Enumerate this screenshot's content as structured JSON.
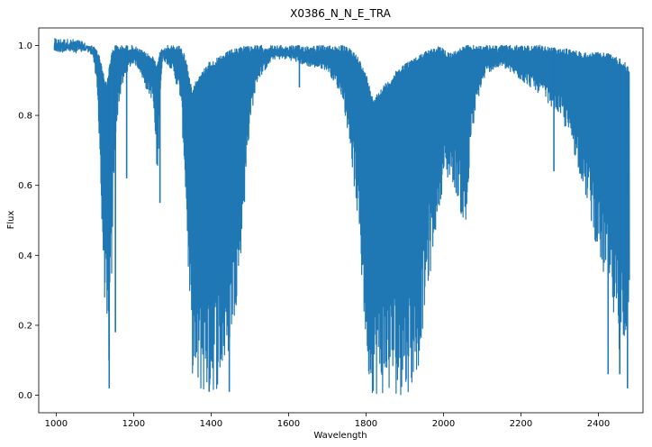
{
  "chart_data": {
    "type": "line",
    "title": "X0386_N_N_E_TRA",
    "xlabel": "Wavelength",
    "ylabel": "Flux",
    "xlim": [
      955,
      2515
    ],
    "ylim": [
      -0.05,
      1.05
    ],
    "xticks": [
      1000,
      1200,
      1400,
      1600,
      1800,
      2000,
      2200,
      2400
    ],
    "yticks": [
      0.0,
      0.2,
      0.4,
      0.6,
      0.8,
      1.0
    ],
    "xtick_labels": [
      "1000",
      "1200",
      "1400",
      "1600",
      "1800",
      "2000",
      "2200",
      "2400"
    ],
    "ytick_labels": [
      "0.0",
      "0.2",
      "0.4",
      "0.6",
      "0.8",
      "1.0"
    ],
    "grid": false,
    "series": [
      {
        "color": "#1f77b4",
        "envelope": {
          "x": [
            995,
            1040,
            1060,
            1080,
            1095,
            1105,
            1112,
            1118,
            1125,
            1130,
            1135,
            1140,
            1145,
            1150,
            1160,
            1170,
            1185,
            1200,
            1215,
            1230,
            1250,
            1262,
            1268,
            1275,
            1300,
            1320,
            1330,
            1338,
            1345,
            1352,
            1360,
            1375,
            1390,
            1410,
            1425,
            1440,
            1455,
            1470,
            1480,
            1490,
            1500,
            1520,
            1560,
            1600,
            1650,
            1700,
            1740,
            1760,
            1780,
            1790,
            1800,
            1810,
            1820,
            1840,
            1860,
            1880,
            1900,
            1920,
            1935,
            1945,
            1960,
            1975,
            1985,
            2000,
            2020,
            2040,
            2055,
            2062,
            2070,
            2090,
            2110,
            2150,
            2200,
            2250,
            2300,
            2330,
            2360,
            2380,
            2400,
            2420,
            2440,
            2460,
            2470,
            2480
          ],
          "high": [
            1.0,
            1.0,
            0.998,
            1.0,
            1.0,
            0.99,
            0.97,
            0.95,
            0.9,
            0.9,
            0.92,
            0.96,
            0.99,
            1.0,
            1.0,
            1.0,
            1.0,
            1.0,
            0.99,
            0.98,
            0.97,
            0.95,
            0.98,
            1.0,
            1.0,
            1.0,
            0.98,
            0.95,
            0.9,
            0.88,
            0.9,
            0.92,
            0.95,
            0.96,
            0.97,
            0.98,
            0.99,
            0.99,
            1.0,
            1.0,
            1.0,
            1.0,
            1.0,
            1.0,
            1.0,
            1.0,
            1.0,
            0.99,
            0.97,
            0.94,
            0.92,
            0.88,
            0.85,
            0.88,
            0.9,
            0.93,
            0.95,
            0.96,
            0.97,
            0.98,
            0.99,
            0.99,
            1.0,
            0.99,
            0.98,
            0.99,
            1.0,
            1.0,
            1.0,
            1.0,
            1.0,
            1.0,
            1.0,
            1.0,
            0.99,
            0.99,
            0.98,
            0.98,
            0.98,
            0.98,
            0.97,
            0.96,
            0.95,
            0.93
          ],
          "low": [
            1.0,
            0.998,
            0.995,
            0.985,
            0.97,
            0.88,
            0.72,
            0.45,
            0.28,
            0.12,
            0.05,
            0.18,
            0.4,
            0.65,
            0.82,
            0.88,
            0.93,
            0.95,
            0.93,
            0.88,
            0.84,
            0.6,
            0.85,
            0.96,
            0.93,
            0.85,
            0.68,
            0.45,
            0.22,
            0.06,
            0.0,
            0.0,
            0.0,
            0.01,
            0.03,
            0.08,
            0.18,
            0.3,
            0.45,
            0.6,
            0.78,
            0.9,
            0.96,
            0.96,
            0.94,
            0.93,
            0.85,
            0.7,
            0.48,
            0.3,
            0.12,
            0.02,
            0.0,
            0.0,
            0.0,
            0.0,
            0.0,
            0.02,
            0.08,
            0.18,
            0.3,
            0.42,
            0.52,
            0.6,
            0.62,
            0.55,
            0.45,
            0.5,
            0.72,
            0.85,
            0.92,
            0.94,
            0.9,
            0.86,
            0.8,
            0.72,
            0.6,
            0.5,
            0.4,
            0.3,
            0.2,
            0.1,
            0.05,
            0.3
          ]
        },
        "deep_lines": [
          {
            "x": 1137,
            "y": 0.02
          },
          {
            "x": 1153,
            "y": 0.18
          },
          {
            "x": 1182,
            "y": 0.62
          },
          {
            "x": 1268,
            "y": 0.55
          },
          {
            "x": 1395,
            "y": 0.01
          },
          {
            "x": 1447,
            "y": 0.01
          },
          {
            "x": 1628,
            "y": 0.88
          },
          {
            "x": 2285,
            "y": 0.64
          },
          {
            "x": 2393,
            "y": 0.44
          },
          {
            "x": 2425,
            "y": 0.06
          },
          {
            "x": 2455,
            "y": 0.06
          },
          {
            "x": 2475,
            "y": 0.02
          }
        ]
      }
    ]
  }
}
